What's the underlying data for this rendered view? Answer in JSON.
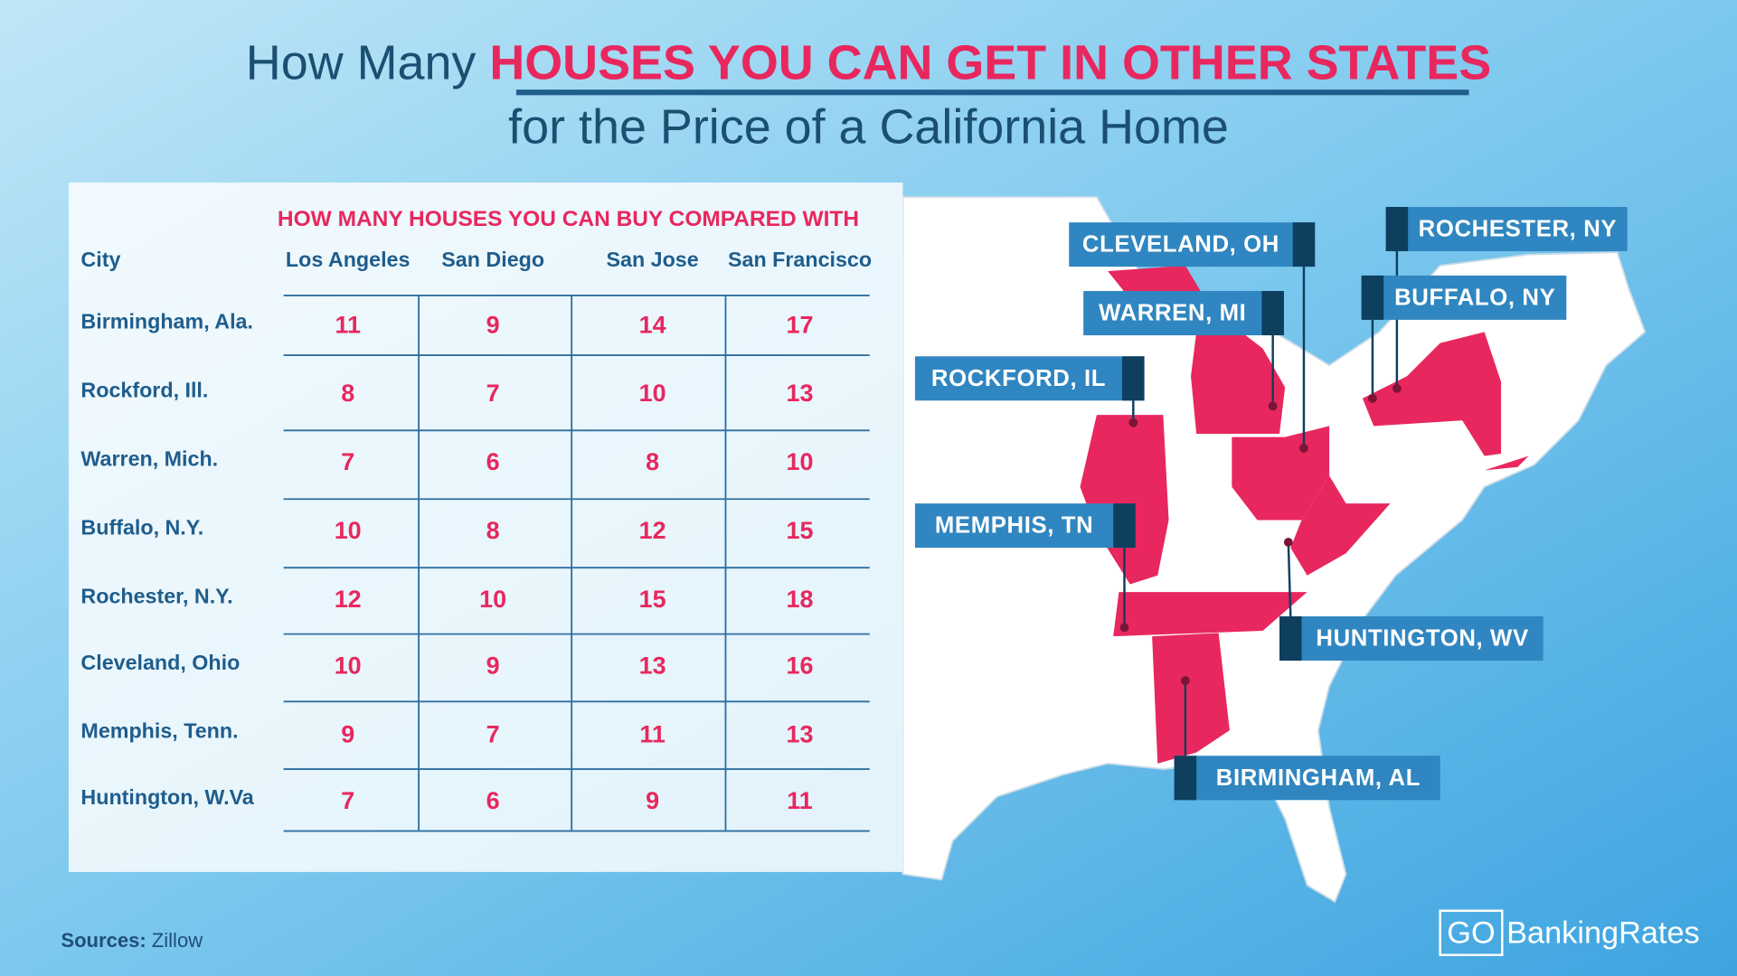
{
  "header": {
    "title_prefix": "How Many ",
    "title_highlight": "HOUSES YOU CAN GET IN OTHER STATES",
    "subtitle": "for the Price of a California Home"
  },
  "table": {
    "caption": "HOW MANY HOUSES YOU CAN BUY COMPARED WITH",
    "columns": [
      "City",
      "Los Angeles",
      "San Diego",
      "San Jose",
      "San Francisco"
    ],
    "rows": [
      [
        "Birmingham, Ala.",
        "11",
        "9",
        "14",
        "17"
      ],
      [
        "Rockford, Ill.",
        "8",
        "7",
        "10",
        "13"
      ],
      [
        "Warren, Mich.",
        "7",
        "6",
        "8",
        "10"
      ],
      [
        "Buffalo, N.Y.",
        "10",
        "8",
        "12",
        "15"
      ],
      [
        "Rochester, N.Y.",
        "12",
        "10",
        "15",
        "18"
      ],
      [
        "Cleveland, Ohio",
        "10",
        "9",
        "13",
        "16"
      ],
      [
        "Memphis, Tenn.",
        "9",
        "7",
        "11",
        "13"
      ],
      [
        "Huntington, W.Va",
        "7",
        "6",
        "9",
        "11"
      ]
    ]
  },
  "map": {
    "labels": [
      "CLEVELAND, OH",
      "ROCHESTER, NY",
      "WARREN, MI",
      "BUFFALO, NY",
      "ROCKFORD, IL",
      "MEMPHIS, TN",
      "HUNTINGTON, WV",
      "BIRMINGHAM, AL"
    ]
  },
  "footer": {
    "sources_label": "Sources:",
    "sources": "Zillow",
    "logo_go": "GO",
    "logo_text": "BankingRates"
  }
}
